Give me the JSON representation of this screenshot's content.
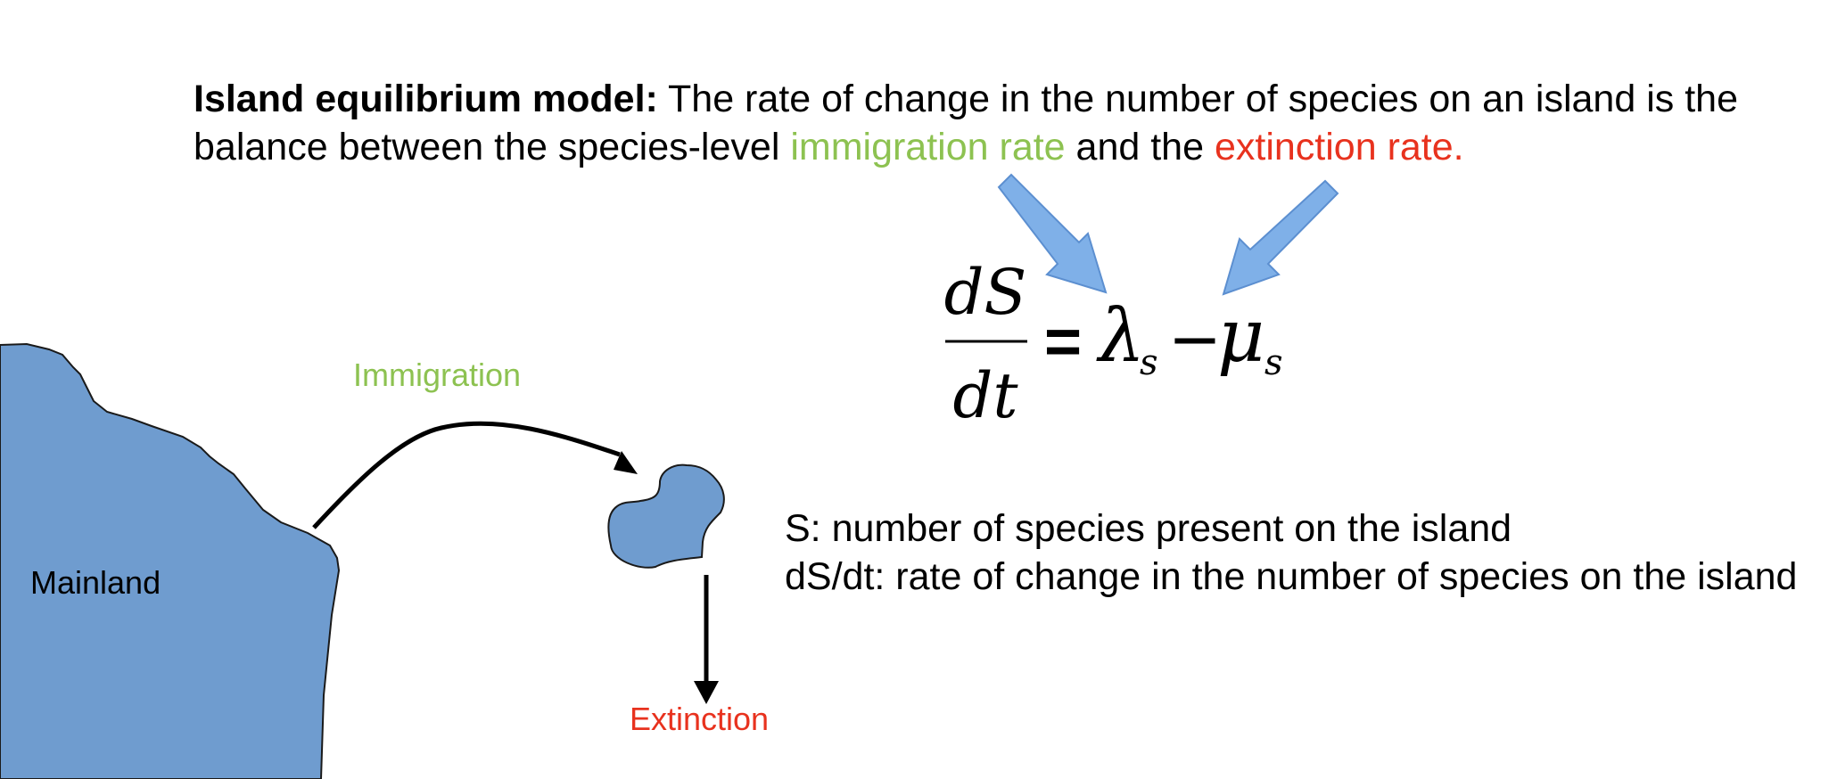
{
  "headline": {
    "title": "Island equilibrium model:",
    "text_1": " The rate of change in the number of species on an island is the",
    "text_2": "balance between the species-level ",
    "immigration_term": "immigration rate",
    "text_3": " and the ",
    "extinction_term": "extinction rate."
  },
  "equation": {
    "numerator": "dS",
    "denominator": "dt",
    "equals": "=",
    "lambda": "λ",
    "lambda_sub": "s",
    "minus": "−",
    "mu": "μ",
    "mu_sub": "s"
  },
  "labels": {
    "immigration": "Immigration",
    "extinction": "Extinction",
    "mainland": "Mainland"
  },
  "definitions": {
    "s": "S: number of species present on the island",
    "dsdt": "dS/dt: rate of change in the number of species on the island"
  },
  "colors": {
    "immigration": "#8dc251",
    "extinction": "#e8321e",
    "land": "#6f9ccf",
    "pointer_arrow": "#7fb0e8"
  },
  "icons": [
    "mainland-shape",
    "island-shape",
    "immigration-arrow",
    "extinction-arrow",
    "pointer-arrow"
  ]
}
